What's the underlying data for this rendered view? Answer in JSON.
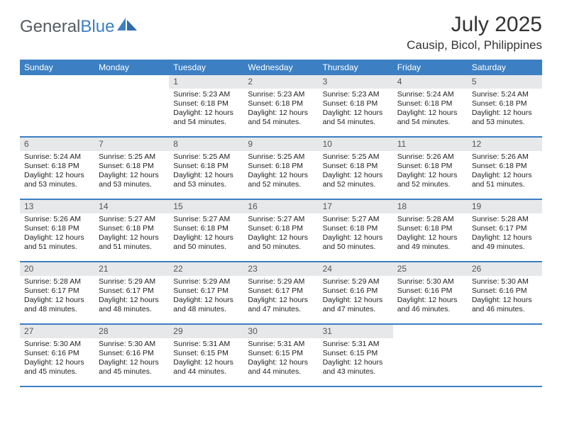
{
  "brand": {
    "word1": "General",
    "word2": "Blue"
  },
  "title": "July 2025",
  "location": "Causip, Bicol, Philippines",
  "colors": {
    "accent": "#3c80c3",
    "daynum_bg": "#e7e8ea",
    "text": "#333333",
    "logo_gray": "#555b61"
  },
  "day_headers": [
    "Sunday",
    "Monday",
    "Tuesday",
    "Wednesday",
    "Thursday",
    "Friday",
    "Saturday"
  ],
  "weeks": [
    [
      {
        "n": "",
        "sr": "",
        "ss": "",
        "dl1": "",
        "dl2": ""
      },
      {
        "n": "",
        "sr": "",
        "ss": "",
        "dl1": "",
        "dl2": ""
      },
      {
        "n": "1",
        "sr": "Sunrise: 5:23 AM",
        "ss": "Sunset: 6:18 PM",
        "dl1": "Daylight: 12 hours",
        "dl2": "and 54 minutes."
      },
      {
        "n": "2",
        "sr": "Sunrise: 5:23 AM",
        "ss": "Sunset: 6:18 PM",
        "dl1": "Daylight: 12 hours",
        "dl2": "and 54 minutes."
      },
      {
        "n": "3",
        "sr": "Sunrise: 5:23 AM",
        "ss": "Sunset: 6:18 PM",
        "dl1": "Daylight: 12 hours",
        "dl2": "and 54 minutes."
      },
      {
        "n": "4",
        "sr": "Sunrise: 5:24 AM",
        "ss": "Sunset: 6:18 PM",
        "dl1": "Daylight: 12 hours",
        "dl2": "and 54 minutes."
      },
      {
        "n": "5",
        "sr": "Sunrise: 5:24 AM",
        "ss": "Sunset: 6:18 PM",
        "dl1": "Daylight: 12 hours",
        "dl2": "and 53 minutes."
      }
    ],
    [
      {
        "n": "6",
        "sr": "Sunrise: 5:24 AM",
        "ss": "Sunset: 6:18 PM",
        "dl1": "Daylight: 12 hours",
        "dl2": "and 53 minutes."
      },
      {
        "n": "7",
        "sr": "Sunrise: 5:25 AM",
        "ss": "Sunset: 6:18 PM",
        "dl1": "Daylight: 12 hours",
        "dl2": "and 53 minutes."
      },
      {
        "n": "8",
        "sr": "Sunrise: 5:25 AM",
        "ss": "Sunset: 6:18 PM",
        "dl1": "Daylight: 12 hours",
        "dl2": "and 53 minutes."
      },
      {
        "n": "9",
        "sr": "Sunrise: 5:25 AM",
        "ss": "Sunset: 6:18 PM",
        "dl1": "Daylight: 12 hours",
        "dl2": "and 52 minutes."
      },
      {
        "n": "10",
        "sr": "Sunrise: 5:25 AM",
        "ss": "Sunset: 6:18 PM",
        "dl1": "Daylight: 12 hours",
        "dl2": "and 52 minutes."
      },
      {
        "n": "11",
        "sr": "Sunrise: 5:26 AM",
        "ss": "Sunset: 6:18 PM",
        "dl1": "Daylight: 12 hours",
        "dl2": "and 52 minutes."
      },
      {
        "n": "12",
        "sr": "Sunrise: 5:26 AM",
        "ss": "Sunset: 6:18 PM",
        "dl1": "Daylight: 12 hours",
        "dl2": "and 51 minutes."
      }
    ],
    [
      {
        "n": "13",
        "sr": "Sunrise: 5:26 AM",
        "ss": "Sunset: 6:18 PM",
        "dl1": "Daylight: 12 hours",
        "dl2": "and 51 minutes."
      },
      {
        "n": "14",
        "sr": "Sunrise: 5:27 AM",
        "ss": "Sunset: 6:18 PM",
        "dl1": "Daylight: 12 hours",
        "dl2": "and 51 minutes."
      },
      {
        "n": "15",
        "sr": "Sunrise: 5:27 AM",
        "ss": "Sunset: 6:18 PM",
        "dl1": "Daylight: 12 hours",
        "dl2": "and 50 minutes."
      },
      {
        "n": "16",
        "sr": "Sunrise: 5:27 AM",
        "ss": "Sunset: 6:18 PM",
        "dl1": "Daylight: 12 hours",
        "dl2": "and 50 minutes."
      },
      {
        "n": "17",
        "sr": "Sunrise: 5:27 AM",
        "ss": "Sunset: 6:18 PM",
        "dl1": "Daylight: 12 hours",
        "dl2": "and 50 minutes."
      },
      {
        "n": "18",
        "sr": "Sunrise: 5:28 AM",
        "ss": "Sunset: 6:18 PM",
        "dl1": "Daylight: 12 hours",
        "dl2": "and 49 minutes."
      },
      {
        "n": "19",
        "sr": "Sunrise: 5:28 AM",
        "ss": "Sunset: 6:17 PM",
        "dl1": "Daylight: 12 hours",
        "dl2": "and 49 minutes."
      }
    ],
    [
      {
        "n": "20",
        "sr": "Sunrise: 5:28 AM",
        "ss": "Sunset: 6:17 PM",
        "dl1": "Daylight: 12 hours",
        "dl2": "and 48 minutes."
      },
      {
        "n": "21",
        "sr": "Sunrise: 5:29 AM",
        "ss": "Sunset: 6:17 PM",
        "dl1": "Daylight: 12 hours",
        "dl2": "and 48 minutes."
      },
      {
        "n": "22",
        "sr": "Sunrise: 5:29 AM",
        "ss": "Sunset: 6:17 PM",
        "dl1": "Daylight: 12 hours",
        "dl2": "and 48 minutes."
      },
      {
        "n": "23",
        "sr": "Sunrise: 5:29 AM",
        "ss": "Sunset: 6:17 PM",
        "dl1": "Daylight: 12 hours",
        "dl2": "and 47 minutes."
      },
      {
        "n": "24",
        "sr": "Sunrise: 5:29 AM",
        "ss": "Sunset: 6:16 PM",
        "dl1": "Daylight: 12 hours",
        "dl2": "and 47 minutes."
      },
      {
        "n": "25",
        "sr": "Sunrise: 5:30 AM",
        "ss": "Sunset: 6:16 PM",
        "dl1": "Daylight: 12 hours",
        "dl2": "and 46 minutes."
      },
      {
        "n": "26",
        "sr": "Sunrise: 5:30 AM",
        "ss": "Sunset: 6:16 PM",
        "dl1": "Daylight: 12 hours",
        "dl2": "and 46 minutes."
      }
    ],
    [
      {
        "n": "27",
        "sr": "Sunrise: 5:30 AM",
        "ss": "Sunset: 6:16 PM",
        "dl1": "Daylight: 12 hours",
        "dl2": "and 45 minutes."
      },
      {
        "n": "28",
        "sr": "Sunrise: 5:30 AM",
        "ss": "Sunset: 6:16 PM",
        "dl1": "Daylight: 12 hours",
        "dl2": "and 45 minutes."
      },
      {
        "n": "29",
        "sr": "Sunrise: 5:31 AM",
        "ss": "Sunset: 6:15 PM",
        "dl1": "Daylight: 12 hours",
        "dl2": "and 44 minutes."
      },
      {
        "n": "30",
        "sr": "Sunrise: 5:31 AM",
        "ss": "Sunset: 6:15 PM",
        "dl1": "Daylight: 12 hours",
        "dl2": "and 44 minutes."
      },
      {
        "n": "31",
        "sr": "Sunrise: 5:31 AM",
        "ss": "Sunset: 6:15 PM",
        "dl1": "Daylight: 12 hours",
        "dl2": "and 43 minutes."
      },
      {
        "n": "",
        "sr": "",
        "ss": "",
        "dl1": "",
        "dl2": ""
      },
      {
        "n": "",
        "sr": "",
        "ss": "",
        "dl1": "",
        "dl2": ""
      }
    ]
  ]
}
